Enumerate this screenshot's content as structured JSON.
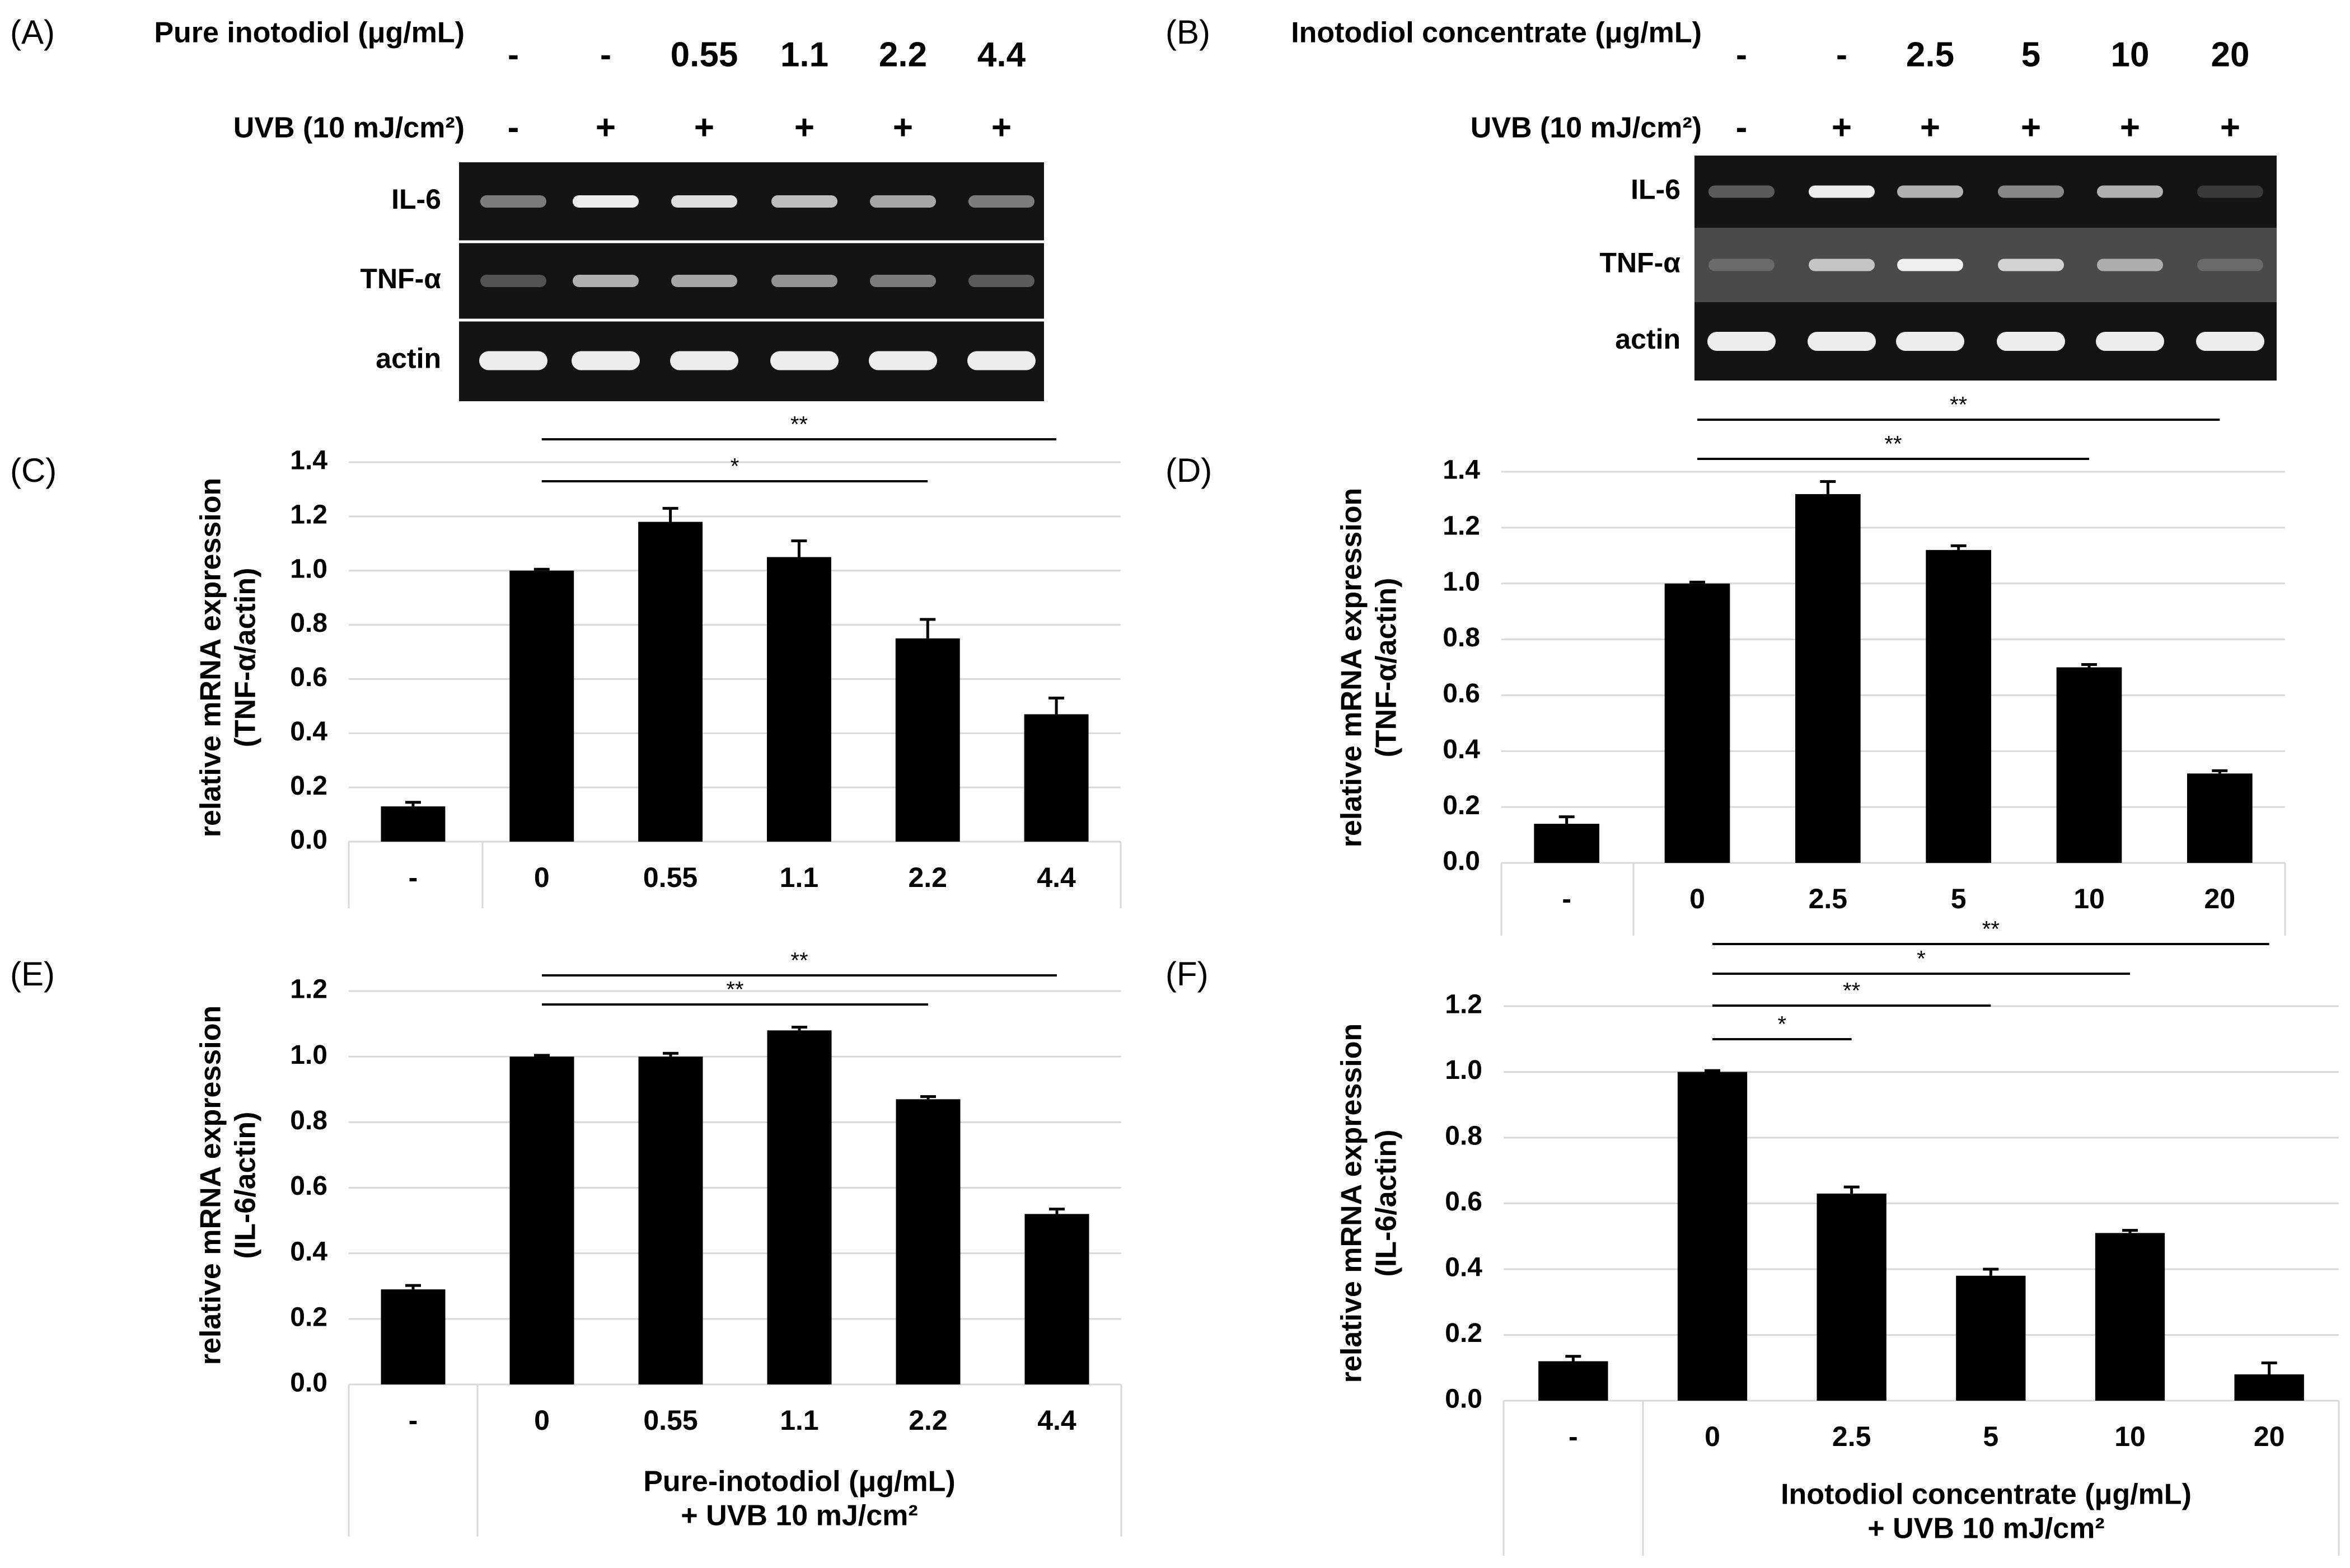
{
  "gels": [
    {
      "panel": "(A)",
      "treatment_label": "Pure inotodiol (μg/mL)",
      "treatment_values": [
        "-",
        "-",
        "0.55",
        "1.1",
        "2.2",
        "4.4"
      ],
      "uvb_label": "UVB (10 mJ/cm²)",
      "uvb_values": [
        "-",
        "+",
        "+",
        "+",
        "+",
        "+"
      ],
      "lanes": [
        {
          "name": "IL-6",
          "intensity": [
            0.55,
            0.95,
            0.9,
            0.8,
            0.72,
            0.55
          ]
        },
        {
          "name": "TNF-α",
          "intensity": [
            0.35,
            0.75,
            0.72,
            0.65,
            0.55,
            0.4
          ]
        },
        {
          "name": "actin",
          "intensity": [
            0.95,
            0.95,
            0.95,
            0.95,
            0.95,
            0.95
          ]
        }
      ]
    },
    {
      "panel": "(B)",
      "treatment_label": "Inotodiol concentrate (μg/mL)",
      "treatment_values": [
        "-",
        "-",
        "2.5",
        "5",
        "10",
        "20"
      ],
      "uvb_label": "UVB (10 mJ/cm²)",
      "uvb_values": [
        "-",
        "+",
        "+",
        "+",
        "+",
        "+"
      ],
      "lanes": [
        {
          "name": "IL-6",
          "intensity": [
            0.4,
            0.95,
            0.75,
            0.6,
            0.75,
            0.2
          ]
        },
        {
          "name": "TNF-α",
          "intensity": [
            0.35,
            0.8,
            0.95,
            0.85,
            0.7,
            0.35
          ]
        },
        {
          "name": "actin",
          "intensity": [
            0.95,
            0.95,
            0.95,
            0.95,
            0.95,
            0.95
          ]
        }
      ]
    }
  ],
  "chart_data": [
    {
      "panel": "(C)",
      "type": "bar",
      "categories": [
        "-",
        "0",
        "0.55",
        "1.1",
        "2.2",
        "4.4"
      ],
      "values": [
        0.13,
        1.0,
        1.18,
        1.05,
        0.75,
        0.47
      ],
      "errors": [
        0.015,
        0.005,
        0.05,
        0.06,
        0.07,
        0.06
      ],
      "ylabel": [
        "relative mRNA expression",
        "(TNF-α/actin)"
      ],
      "ylim": [
        0,
        1.4
      ],
      "yticks": [
        "0.0",
        "0.2",
        "0.4",
        "0.6",
        "0.8",
        "1.0",
        "1.2",
        "1.4"
      ],
      "xlabel": [],
      "grid": true,
      "significance": [
        {
          "from": 1,
          "to": 4,
          "label": "*"
        },
        {
          "from": 1,
          "to": 5,
          "label": "**"
        }
      ]
    },
    {
      "panel": "(D)",
      "type": "bar",
      "categories": [
        "-",
        "0",
        "2.5",
        "5",
        "10",
        "20"
      ],
      "values": [
        0.14,
        1.0,
        1.32,
        1.12,
        0.7,
        0.32
      ],
      "errors": [
        0.025,
        0.005,
        0.045,
        0.015,
        0.01,
        0.01
      ],
      "ylabel": [
        "relative mRNA expression",
        "(TNF-α/actin)"
      ],
      "ylim": [
        0,
        1.4
      ],
      "yticks": [
        "0.0",
        "0.2",
        "0.4",
        "0.6",
        "0.8",
        "1.0",
        "1.2",
        "1.4"
      ],
      "xlabel": [],
      "grid": true,
      "significance": [
        {
          "from": 1,
          "to": 4,
          "label": "**"
        },
        {
          "from": 1,
          "to": 5,
          "label": "**"
        }
      ]
    },
    {
      "panel": "(E)",
      "type": "bar",
      "categories": [
        "-",
        "0",
        "0.55",
        "1.1",
        "2.2",
        "4.4"
      ],
      "values": [
        0.29,
        1.0,
        1.0,
        1.08,
        0.87,
        0.52
      ],
      "errors": [
        0.012,
        0.004,
        0.01,
        0.01,
        0.008,
        0.015
      ],
      "ylabel": [
        "relative mRNA expression",
        "(IL-6/actin)"
      ],
      "ylim": [
        0,
        1.2
      ],
      "yticks": [
        "0.0",
        "0.2",
        "0.4",
        "0.6",
        "0.8",
        "1.0",
        "1.2"
      ],
      "xlabel": [
        "Pure-inotodiol (μg/mL)",
        "+ UVB 10 mJ/cm²"
      ],
      "grid": true,
      "significance": [
        {
          "from": 1,
          "to": 4,
          "label": "**"
        },
        {
          "from": 1,
          "to": 5,
          "label": "**"
        }
      ]
    },
    {
      "panel": "(F)",
      "type": "bar",
      "categories": [
        "-",
        "0",
        "2.5",
        "5",
        "10",
        "20"
      ],
      "values": [
        0.12,
        1.0,
        0.63,
        0.38,
        0.51,
        0.08
      ],
      "errors": [
        0.015,
        0.004,
        0.02,
        0.02,
        0.008,
        0.035
      ],
      "ylabel": [
        "relative mRNA expression",
        "(IL-6/actin)"
      ],
      "ylim": [
        0,
        1.2
      ],
      "yticks": [
        "0.0",
        "0.2",
        "0.4",
        "0.6",
        "0.8",
        "1.0",
        "1.2"
      ],
      "xlabel": [
        "Inotodiol concentrate (μg/mL)",
        "+ UVB 10 mJ/cm²"
      ],
      "grid": true,
      "significance": [
        {
          "from": 1,
          "to": 2,
          "label": "*"
        },
        {
          "from": 1,
          "to": 3,
          "label": "**"
        },
        {
          "from": 1,
          "to": 4,
          "label": "*"
        },
        {
          "from": 1,
          "to": 5,
          "label": "**"
        }
      ]
    }
  ]
}
